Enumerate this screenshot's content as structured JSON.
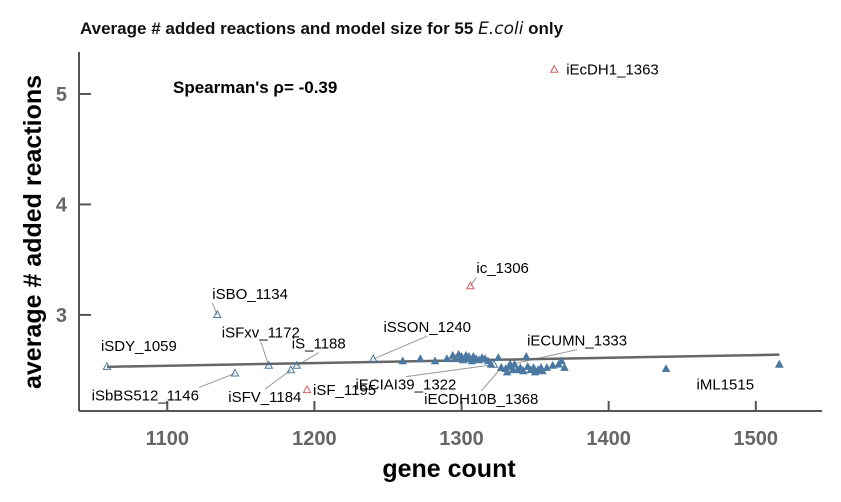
{
  "chart_data": {
    "type": "scatter",
    "title_parts": [
      "Average # added reactions and model size for 55 ",
      "E.coli",
      " only"
    ],
    "annotation": "Spearman's ρ= -0.39",
    "xlabel": "gene count",
    "ylabel": "average # added reactions",
    "xlim": [
      1040,
      1545
    ],
    "ylim": [
      2.13,
      5.38
    ],
    "xticks": [
      1100,
      1200,
      1300,
      1400,
      1500
    ],
    "yticks": [
      3,
      4,
      5
    ],
    "grid": false,
    "colors": {
      "highlight": "#d06060",
      "normal": "#4a78a0",
      "trend": "#666666"
    },
    "trend_line": {
      "x": [
        1059,
        1516
      ],
      "y": [
        2.53,
        2.64
      ]
    },
    "labeled_points": [
      {
        "name": "iEcDH1_1363",
        "x": 1363,
        "y": 5.22,
        "group": "highlight",
        "filled": false
      },
      {
        "name": "ic_1306",
        "x": 1306,
        "y": 3.26,
        "group": "highlight",
        "filled": false
      },
      {
        "name": "iSF_1195",
        "x": 1195,
        "y": 2.32,
        "group": "highlight",
        "filled": false
      },
      {
        "name": "iSBO_1134",
        "x": 1134,
        "y": 3.0,
        "group": "normal",
        "filled": false
      },
      {
        "name": "iSDY_1059",
        "x": 1059,
        "y": 2.53,
        "group": "normal",
        "filled": false
      },
      {
        "name": "iSbBS512_1146",
        "x": 1146,
        "y": 2.47,
        "group": "normal",
        "filled": false
      },
      {
        "name": "iSFxv_1172",
        "x": 1169,
        "y": 2.54,
        "group": "normal",
        "filled": false
      },
      {
        "name": "iSFV_1184",
        "x": 1184,
        "y": 2.5,
        "group": "normal",
        "filled": false
      },
      {
        "name": "iS_1188",
        "x": 1188,
        "y": 2.54,
        "group": "normal",
        "filled": false
      },
      {
        "name": "iSSON_1240",
        "x": 1240,
        "y": 2.6,
        "group": "normal",
        "filled": false
      },
      {
        "name": "iECIAI39_1322",
        "x": 1322,
        "y": 2.55,
        "group": "normal",
        "filled": false
      },
      {
        "name": "iECUMN_1333",
        "x": 1333,
        "y": 2.55,
        "group": "normal",
        "filled": true
      },
      {
        "name": "iECDH10B_1368",
        "x": 1327,
        "y": 2.52,
        "group": "normal",
        "filled": true
      },
      {
        "name": "iML1515",
        "x": 1516,
        "y": 2.55,
        "group": "normal",
        "filled": true
      }
    ],
    "other_points": {
      "x": [
        1260,
        1272,
        1282,
        1290,
        1294,
        1296,
        1298,
        1300,
        1301,
        1303,
        1304,
        1305,
        1307,
        1308,
        1310,
        1312,
        1314,
        1316,
        1318,
        1320,
        1325,
        1330,
        1331,
        1333,
        1335,
        1336,
        1338,
        1340,
        1342,
        1344,
        1345,
        1347,
        1349,
        1350,
        1352,
        1354,
        1355,
        1358,
        1362,
        1366,
        1368,
        1370,
        1439
      ],
      "y": [
        2.58,
        2.6,
        2.58,
        2.6,
        2.63,
        2.6,
        2.64,
        2.62,
        2.59,
        2.63,
        2.6,
        2.62,
        2.58,
        2.62,
        2.6,
        2.59,
        2.61,
        2.6,
        2.58,
        2.55,
        2.61,
        2.51,
        2.48,
        2.53,
        2.5,
        2.55,
        2.5,
        2.52,
        2.49,
        2.62,
        2.53,
        2.5,
        2.52,
        2.48,
        2.5,
        2.52,
        2.49,
        2.52,
        2.54,
        2.55,
        2.58,
        2.52,
        2.51
      ]
    }
  }
}
